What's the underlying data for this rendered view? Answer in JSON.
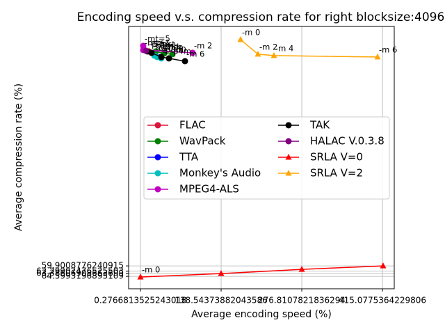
{
  "chart_data": {
    "type": "line",
    "title": "Encoding speed v.s. compression rate for right blocksize:4096",
    "x_label": "Average encoding speed (%)",
    "y_label": "Average compression rate (%)",
    "xlim": [
      -20,
      435.3
    ],
    "ylim": [
      70.2,
      -47.9
    ],
    "xticks": [
      0.2766813525243018,
      138.54373882043586,
      276.8107821836294,
      415.0775364229806
    ],
    "yticks": [
      59.9008776240915,
      62.29902476525503,
      63.38606908663699,
      64.5993196895109
    ],
    "grid": true,
    "legend_position": "center",
    "series": [
      {
        "name": "FLAC",
        "color": "#dc143c",
        "marker": "circle",
        "x": [
          14.58,
          26.5
        ],
        "values": [
          -36.65,
          -34.77
        ],
        "labels": [
          "-5",
          "-8"
        ]
      },
      {
        "name": "WavPack",
        "color": "#008000",
        "marker": "circle",
        "x": [
          26.5,
          40.8,
          55.1
        ],
        "values": [
          -36.65,
          -35.71,
          -35.4
        ],
        "labels": [
          "-fast",
          "-hb",
          "-h"
        ]
      },
      {
        "name": "TTA",
        "color": "#0000ff",
        "marker": "circle",
        "x": [
          33.6
        ],
        "values": [
          -34.14
        ]
      },
      {
        "name": "Monkey's Audio",
        "color": "#00bfbf",
        "marker": "circle",
        "x": [
          24.1,
          28.9,
          36.0
        ],
        "values": [
          -34.77,
          -34.14,
          -33.52
        ],
        "labels": [
          "-c1000",
          "-c3000",
          "4"
        ]
      },
      {
        "name": "MPEG4-ALS",
        "color": "#bf00bf",
        "marker": "circle",
        "x": [
          5.05,
          5.05,
          89.67
        ],
        "values": [
          -39.16,
          -37.28,
          -36.02
        ],
        "labels": [
          "-mt=5",
          "-mt=1",
          "-m 2"
        ]
      },
      {
        "name": "TAK",
        "color": "#000000",
        "marker": "circle",
        "x": [
          12.2,
          19.3,
          36.0,
          49.1,
          76.6
        ],
        "values": [
          -36.65,
          -36.02,
          -34.14,
          -33.52,
          -32.26
        ],
        "labels": [
          "-p0m",
          "-p1m",
          "-p3m",
          "-p4m",
          "-m 6"
        ]
      },
      {
        "name": "HALAC V.0.3.8",
        "color": "#800080",
        "marker": "circle",
        "x": [
          9.81
        ],
        "values": [
          -36.97
        ]
      },
      {
        "name": "SRLA V=0",
        "color": "#ff0000",
        "marker": "triangle",
        "x": [
          0.28,
          138.5,
          276.8,
          416.2
        ],
        "values": [
          64.92,
          63.35,
          61.47,
          59.9
        ],
        "labels": [
          "-m 0",
          null,
          null,
          null
        ]
      },
      {
        "name": "SRLA V=2",
        "color": "#ffa500",
        "marker": "triangle",
        "x": [
          171.9,
          201.7,
          229.1,
          406.7
        ],
        "values": [
          -41.98,
          -35.4,
          -34.77,
          -34.14
        ],
        "labels": [
          "-m 0",
          "-m 2",
          "-m 4",
          "-m 6"
        ]
      }
    ]
  }
}
